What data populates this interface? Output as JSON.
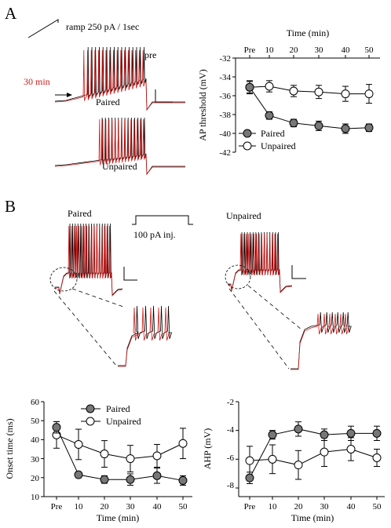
{
  "panelA": {
    "letter": "A",
    "ramp_label": "ramp 250 pA / 1sec",
    "label_pre": "pre",
    "label_30min": "30 min",
    "label_paired": "Paired",
    "label_unpaired": "Unpaired"
  },
  "panelB": {
    "letter": "B",
    "label_paired": "Paired",
    "label_unpaired": "Unpaired",
    "step_label": "100 pA inj."
  },
  "colors": {
    "paired_fill": "#777777",
    "unpaired_fill": "#ffffff",
    "trace_red": "#d11b1b",
    "trace_black": "#000000"
  },
  "chart_data": [
    {
      "id": "ap-threshold",
      "type": "line",
      "x_title": "Time (min)",
      "ylabel": "AP threshold (mV)",
      "categories": [
        "Pre",
        "10",
        "20",
        "30",
        "40",
        "50"
      ],
      "ylim": [
        -42,
        -32
      ],
      "yticks": [
        "-32",
        "-34",
        "-36",
        "-38",
        "-40",
        "-42"
      ],
      "legend": "bottom-left",
      "series": [
        {
          "name": "Paired",
          "values": [
            -35.1,
            -38.1,
            -38.9,
            -39.2,
            -39.5,
            -39.4
          ],
          "errors": [
            0.6,
            0.4,
            0.4,
            0.5,
            0.5,
            0.4
          ]
        },
        {
          "name": "Unpaired",
          "values": [
            -35.1,
            -35.0,
            -35.5,
            -35.6,
            -35.8,
            -35.8
          ],
          "errors": [
            0.7,
            0.6,
            0.6,
            0.7,
            0.8,
            1.0
          ]
        }
      ]
    },
    {
      "id": "onset-time",
      "type": "line",
      "xlabel": "Time (min)",
      "ylabel": "Onset time (ms)",
      "categories": [
        "Pre",
        "10",
        "20",
        "30",
        "40",
        "50"
      ],
      "ylim": [
        10,
        60
      ],
      "yticks": [
        "10",
        "20",
        "30",
        "40",
        "50",
        "60"
      ],
      "legend": "top",
      "series": [
        {
          "name": "Paired",
          "values": [
            46.5,
            21.5,
            19,
            19,
            21,
            18.5
          ],
          "errors": [
            3,
            1.5,
            2,
            3,
            4,
            2.5
          ]
        },
        {
          "name": "Unpaired",
          "values": [
            42.5,
            37.5,
            32.5,
            30,
            31.5,
            38
          ],
          "errors": [
            7,
            8,
            7,
            7,
            6,
            8
          ]
        }
      ]
    },
    {
      "id": "ahp",
      "type": "line",
      "xlabel": "Time (min)",
      "ylabel": "AHP (mV)",
      "categories": [
        "Pre",
        "10",
        "20",
        "30",
        "40",
        "50"
      ],
      "ylim": [
        -8.6,
        -2
      ],
      "yticks": [
        "-2",
        "-4",
        "-6",
        "-8"
      ],
      "series": [
        {
          "name": "Paired",
          "values": [
            -7.3,
            -4.3,
            -3.9,
            -4.3,
            -4.2,
            -4.2
          ],
          "errors": [
            0.4,
            0.3,
            0.5,
            0.4,
            0.5,
            0.5
          ]
        },
        {
          "name": "Unpaired",
          "values": [
            -6.1,
            -6.0,
            -6.4,
            -5.5,
            -5.3,
            -5.9
          ],
          "errors": [
            1.0,
            1.0,
            1.0,
            1.0,
            0.8,
            0.6
          ]
        }
      ]
    }
  ]
}
